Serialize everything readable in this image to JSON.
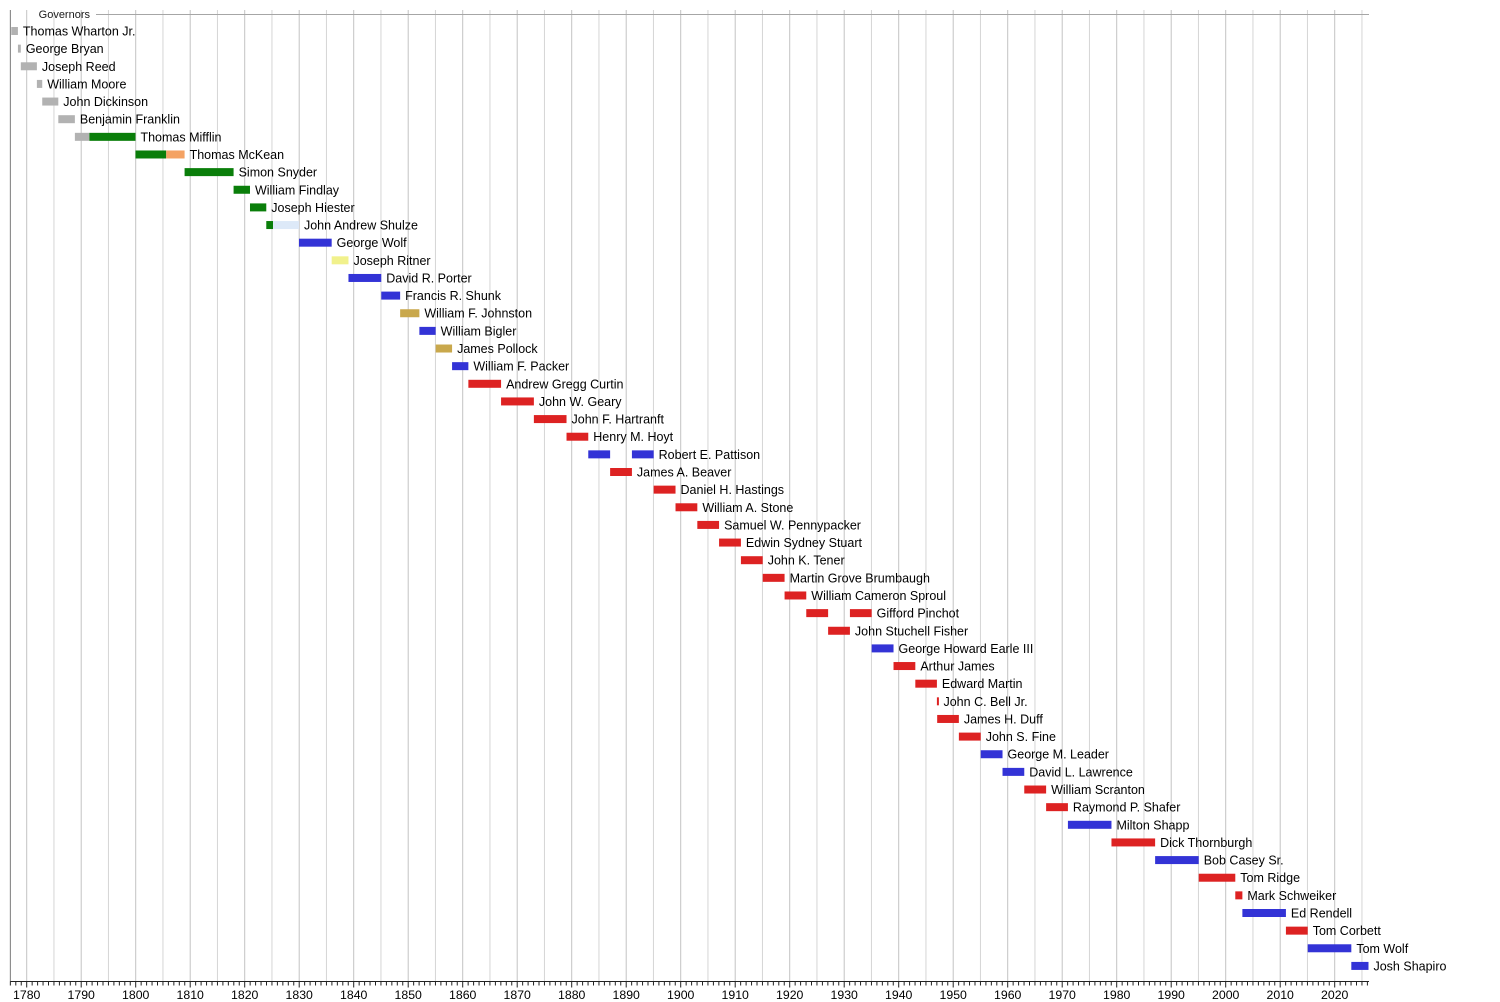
{
  "chart_data": {
    "type": "bar",
    "variant": "gantt-timeline",
    "title": "Governors",
    "xlabel": "",
    "ylabel": "",
    "grid": true,
    "legend": "none",
    "x_axis": {
      "min": 1777,
      "max": 2026.3,
      "gridline_interval_years": 5,
      "minor_tick_interval_years": 1,
      "tick_labels": [
        1780,
        1790,
        1800,
        1810,
        1820,
        1830,
        1840,
        1850,
        1860,
        1870,
        1880,
        1890,
        1900,
        1910,
        1920,
        1930,
        1940,
        1950,
        1960,
        1970,
        1980,
        1990,
        2000,
        2010,
        2020
      ]
    },
    "palette": {
      "council": "#b2b2b2",
      "democratic_republican": "#0a7e0a",
      "mckean_third_term": "#f4a263",
      "shulze_second": "#dde9f8",
      "democratic": "#3333d6",
      "anti_masonic": "#f1f18c",
      "whig": "#c9a84c",
      "republican": "#dd2222"
    },
    "governors": [
      {
        "name": "Thomas Wharton Jr.",
        "segments": [
          [
            1777.17,
            1778.39,
            "council"
          ]
        ]
      },
      {
        "name": "George Bryan",
        "segments": [
          [
            1778.39,
            1778.92,
            "council"
          ]
        ]
      },
      {
        "name": "Joseph Reed",
        "segments": [
          [
            1778.92,
            1781.87,
            "council"
          ]
        ]
      },
      {
        "name": "William Moore",
        "segments": [
          [
            1781.87,
            1782.85,
            "council"
          ]
        ]
      },
      {
        "name": "John Dickinson",
        "segments": [
          [
            1782.85,
            1785.8,
            "council"
          ]
        ]
      },
      {
        "name": "Benjamin Franklin",
        "segments": [
          [
            1785.8,
            1788.84,
            "council"
          ]
        ]
      },
      {
        "name": "Thomas Mifflin",
        "segments": [
          [
            1788.84,
            1791.5,
            "council"
          ],
          [
            1791.5,
            1799.96,
            "democratic_republican"
          ]
        ]
      },
      {
        "name": "Thomas McKean",
        "segments": [
          [
            1799.96,
            1805.6,
            "democratic_republican"
          ],
          [
            1805.6,
            1808.97,
            "mckean_third_term"
          ]
        ]
      },
      {
        "name": "Simon Snyder",
        "segments": [
          [
            1808.97,
            1817.96,
            "democratic_republican"
          ]
        ]
      },
      {
        "name": "William Findlay",
        "segments": [
          [
            1817.96,
            1820.97,
            "democratic_republican"
          ]
        ]
      },
      {
        "name": "Joseph Hiester",
        "segments": [
          [
            1820.97,
            1823.96,
            "democratic_republican"
          ]
        ]
      },
      {
        "name": "John Andrew Shulze",
        "segments": [
          [
            1823.96,
            1825.2,
            "democratic_republican"
          ],
          [
            1825.2,
            1829.96,
            "shulze_second"
          ]
        ]
      },
      {
        "name": "George Wolf",
        "segments": [
          [
            1829.96,
            1835.96,
            "democratic"
          ]
        ]
      },
      {
        "name": "Joseph Ritner",
        "segments": [
          [
            1835.96,
            1839.04,
            "anti_masonic"
          ]
        ]
      },
      {
        "name": "David R. Porter",
        "segments": [
          [
            1839.04,
            1845.06,
            "democratic"
          ]
        ]
      },
      {
        "name": "Francis R. Shunk",
        "segments": [
          [
            1845.06,
            1848.52,
            "democratic"
          ]
        ]
      },
      {
        "name": "William F. Johnston",
        "segments": [
          [
            1848.52,
            1852.05,
            "whig"
          ]
        ]
      },
      {
        "name": "William Bigler",
        "segments": [
          [
            1852.05,
            1855.04,
            "democratic"
          ]
        ]
      },
      {
        "name": "James Pollock",
        "segments": [
          [
            1855.04,
            1858.05,
            "whig"
          ]
        ]
      },
      {
        "name": "William F. Packer",
        "segments": [
          [
            1858.05,
            1861.04,
            "democratic"
          ]
        ]
      },
      {
        "name": "Andrew Gregg Curtin",
        "segments": [
          [
            1861.04,
            1867.04,
            "republican"
          ]
        ]
      },
      {
        "name": "John W. Geary",
        "segments": [
          [
            1867.04,
            1873.06,
            "republican"
          ]
        ]
      },
      {
        "name": "John F. Hartranft",
        "segments": [
          [
            1873.06,
            1879.05,
            "republican"
          ]
        ]
      },
      {
        "name": "Henry M. Hoyt",
        "segments": [
          [
            1879.05,
            1883.04,
            "republican"
          ]
        ]
      },
      {
        "name": "Robert E. Pattison",
        "segments": [
          [
            1883.04,
            1887.05,
            "democratic"
          ],
          [
            1891.05,
            1895.04,
            "democratic"
          ]
        ]
      },
      {
        "name": "James A. Beaver",
        "segments": [
          [
            1887.05,
            1891.05,
            "republican"
          ]
        ]
      },
      {
        "name": "Daniel H. Hastings",
        "segments": [
          [
            1895.04,
            1899.05,
            "republican"
          ]
        ]
      },
      {
        "name": "William A. Stone",
        "segments": [
          [
            1899.05,
            1903.05,
            "republican"
          ]
        ]
      },
      {
        "name": "Samuel W. Pennypacker",
        "segments": [
          [
            1903.05,
            1907.04,
            "republican"
          ]
        ]
      },
      {
        "name": "Edwin Sydney Stuart",
        "segments": [
          [
            1907.04,
            1911.05,
            "republican"
          ]
        ]
      },
      {
        "name": "John K. Tener",
        "segments": [
          [
            1911.05,
            1915.05,
            "republican"
          ]
        ]
      },
      {
        "name": "Martin Grove Brumbaugh",
        "segments": [
          [
            1915.05,
            1919.06,
            "republican"
          ]
        ]
      },
      {
        "name": "William Cameron Sproul",
        "segments": [
          [
            1919.06,
            1923.04,
            "republican"
          ]
        ]
      },
      {
        "name": "Gifford Pinchot",
        "segments": [
          [
            1923.04,
            1927.05,
            "republican"
          ],
          [
            1931.05,
            1935.04,
            "republican"
          ]
        ]
      },
      {
        "name": "John Stuchell Fisher",
        "segments": [
          [
            1927.05,
            1931.05,
            "republican"
          ]
        ]
      },
      {
        "name": "George Howard Earle III",
        "segments": [
          [
            1935.04,
            1939.05,
            "democratic"
          ]
        ]
      },
      {
        "name": "Arthur James",
        "segments": [
          [
            1939.05,
            1943.05,
            "republican"
          ]
        ]
      },
      {
        "name": "Edward Martin",
        "segments": [
          [
            1943.05,
            1947.01,
            "republican"
          ]
        ]
      },
      {
        "name": "John C. Bell Jr.",
        "segments": [
          [
            1947.01,
            1947.3,
            "republican"
          ]
        ]
      },
      {
        "name": "James H. Duff",
        "segments": [
          [
            1947.06,
            1951.04,
            "republican"
          ]
        ]
      },
      {
        "name": "John S. Fine",
        "segments": [
          [
            1951.04,
            1955.05,
            "republican"
          ]
        ]
      },
      {
        "name": "George M. Leader",
        "segments": [
          [
            1955.05,
            1959.05,
            "democratic"
          ]
        ]
      },
      {
        "name": "David L. Lawrence",
        "segments": [
          [
            1959.05,
            1963.04,
            "democratic"
          ]
        ]
      },
      {
        "name": "William Scranton",
        "segments": [
          [
            1963.04,
            1967.05,
            "republican"
          ]
        ]
      },
      {
        "name": "Raymond P. Shafer",
        "segments": [
          [
            1967.05,
            1971.05,
            "republican"
          ]
        ]
      },
      {
        "name": "Milton Shapp",
        "segments": [
          [
            1971.05,
            1979.04,
            "democratic"
          ]
        ]
      },
      {
        "name": "Dick Thornburgh",
        "segments": [
          [
            1979.04,
            1987.05,
            "republican"
          ]
        ]
      },
      {
        "name": "Bob Casey Sr.",
        "segments": [
          [
            1987.05,
            1995.05,
            "democratic"
          ]
        ]
      },
      {
        "name": "Tom Ridge",
        "segments": [
          [
            1995.05,
            2001.76,
            "republican"
          ]
        ]
      },
      {
        "name": "Mark Schweiker",
        "segments": [
          [
            2001.76,
            2003.06,
            "republican"
          ]
        ]
      },
      {
        "name": "Ed Rendell",
        "segments": [
          [
            2003.06,
            2011.05,
            "democratic"
          ]
        ]
      },
      {
        "name": "Tom Corbett",
        "segments": [
          [
            2011.05,
            2015.05,
            "republican"
          ]
        ]
      },
      {
        "name": "Tom Wolf",
        "segments": [
          [
            2015.05,
            2023.05,
            "democratic"
          ]
        ]
      },
      {
        "name": "Josh Shapiro",
        "segments": [
          [
            2023.05,
            2026.2,
            "democratic"
          ]
        ]
      }
    ]
  }
}
